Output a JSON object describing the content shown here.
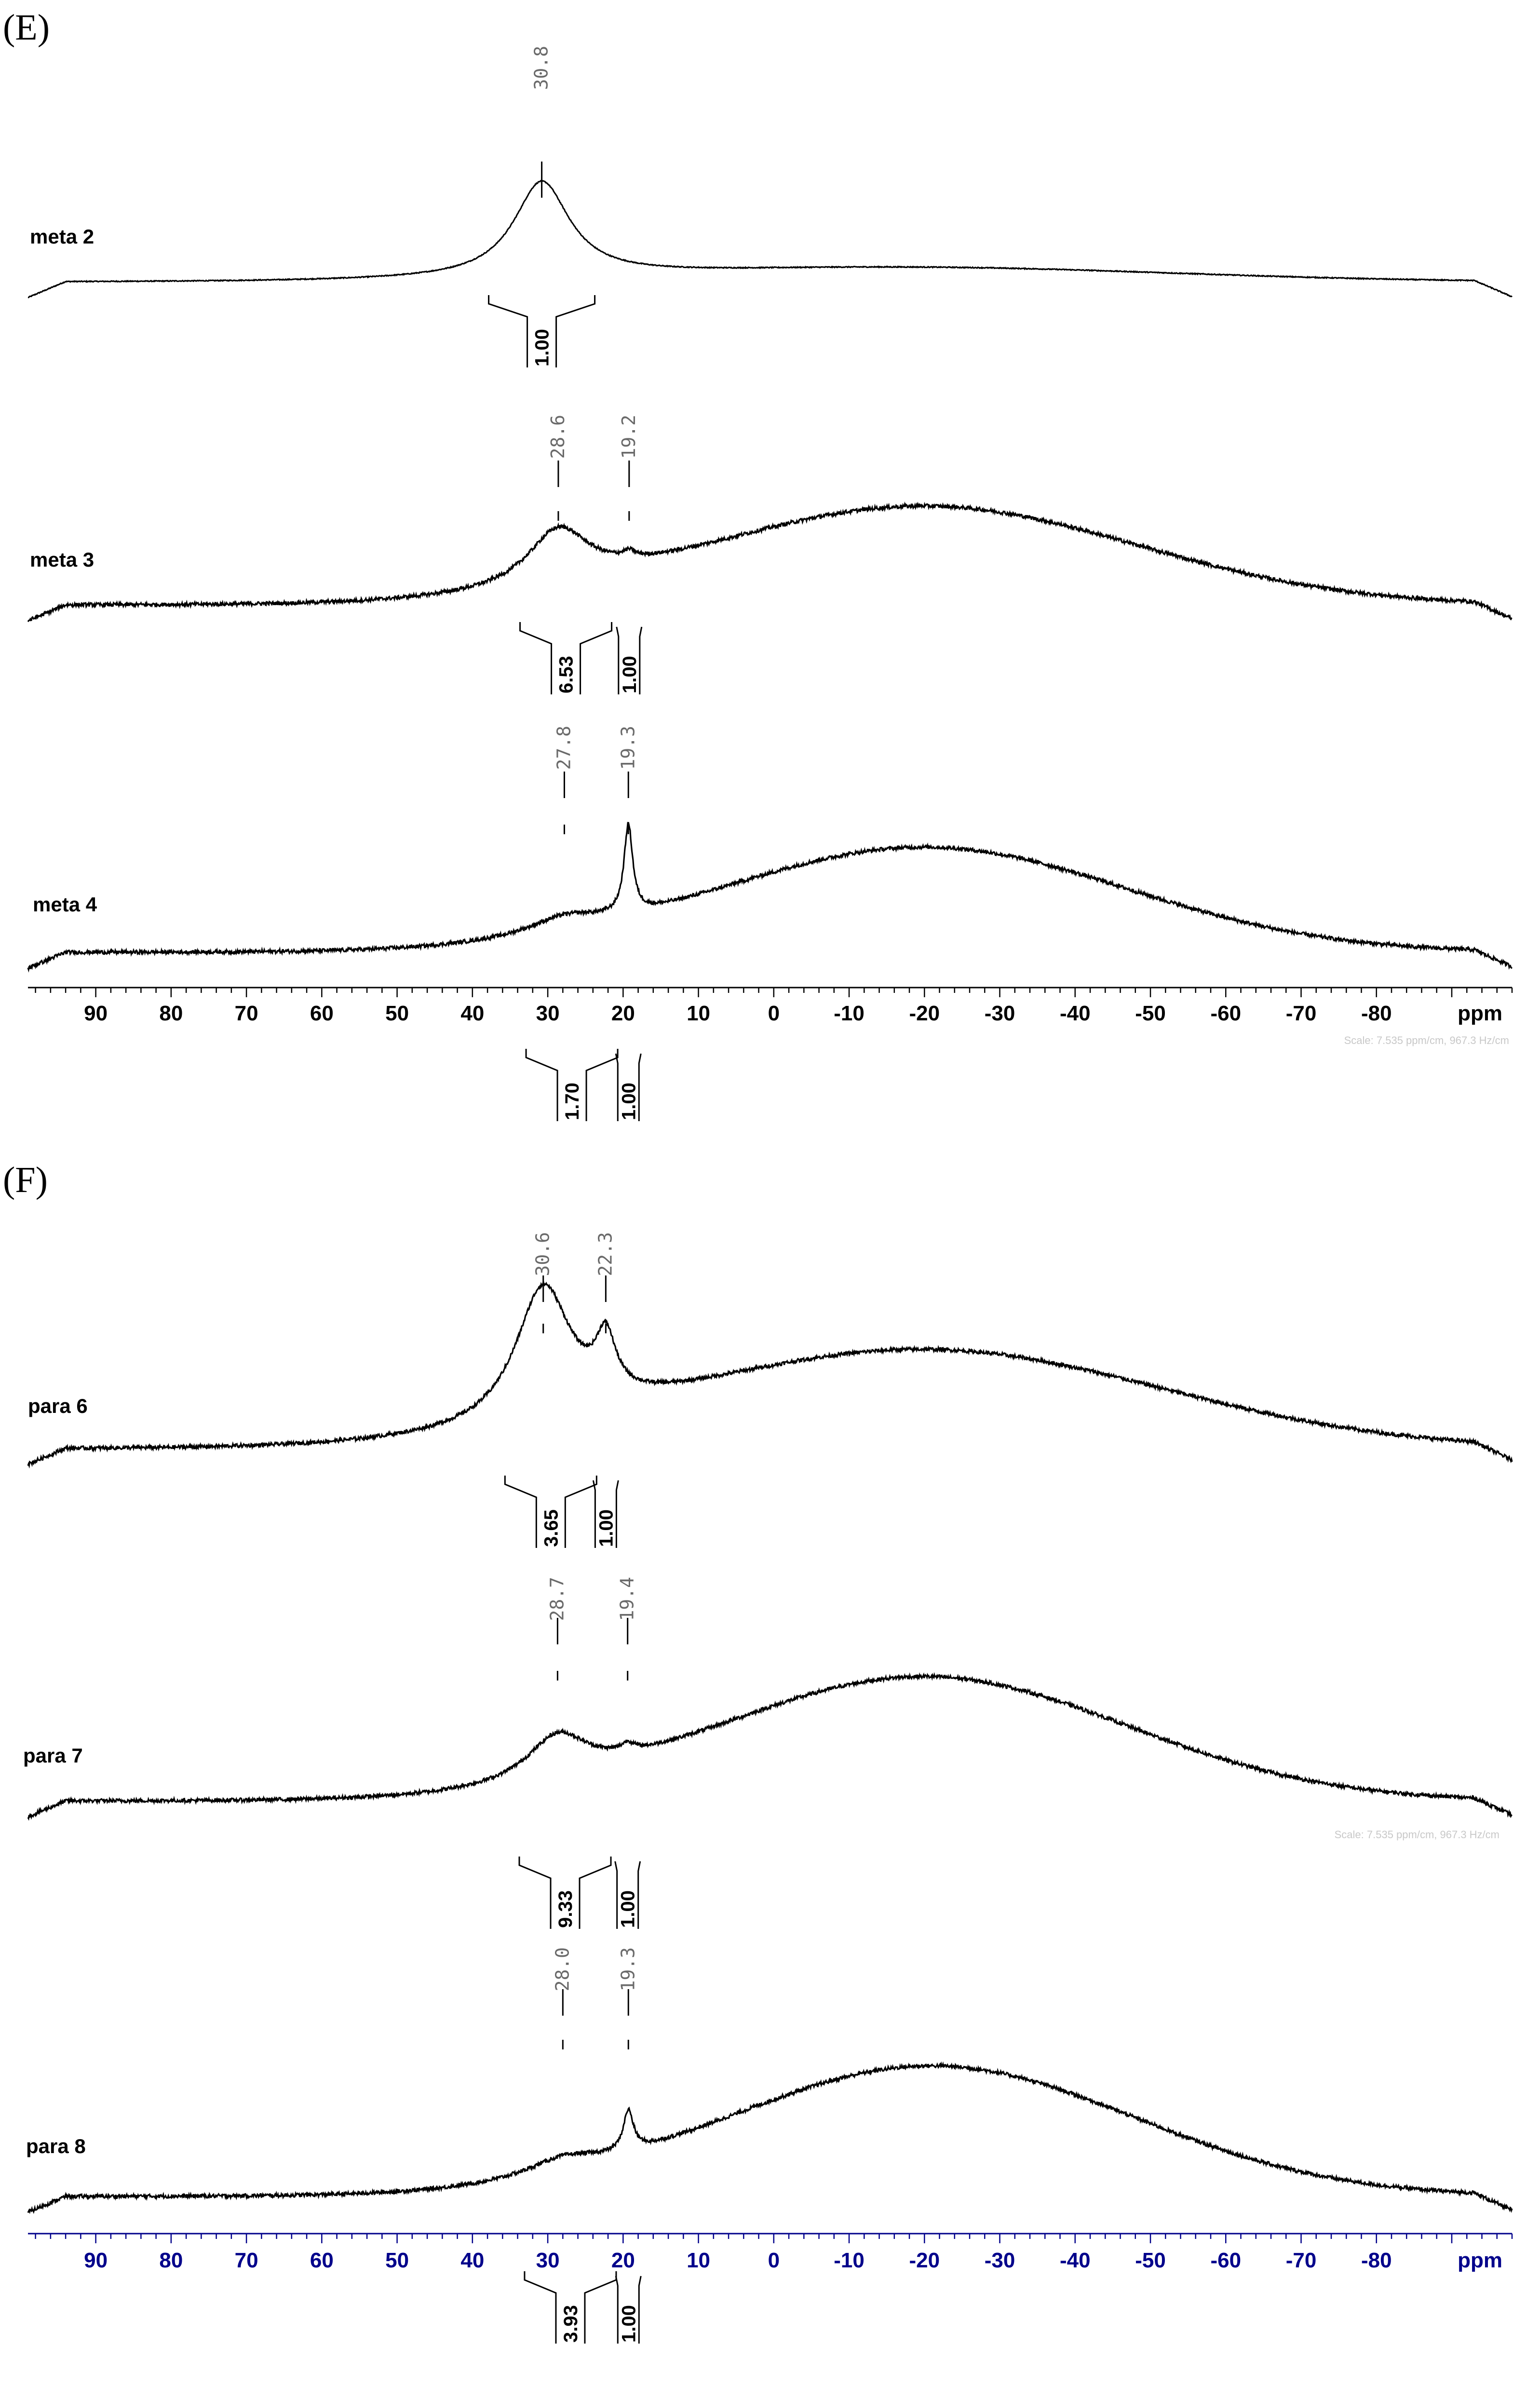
{
  "figure": {
    "panels": [
      {
        "label": "(E)"
      },
      {
        "label": "(F)"
      }
    ],
    "scale_notes": [
      "Scale: 7.535 ppm/cm, 967.3 Hz/cm",
      "Scale: 7.535 ppm/cm, 967.3 Hz/cm"
    ]
  },
  "chart_data": [
    {
      "type": "line",
      "panel": "(E)",
      "xlabel": "ppm",
      "xlim": [
        99,
        -98
      ],
      "x_reversed": true,
      "x_ticks": [
        "90",
        "80",
        "70",
        "60",
        "50",
        "40",
        "30",
        "20",
        "10",
        "0",
        "-10",
        "-20",
        "-30",
        "-40",
        "-50",
        "-60",
        "-70",
        "-80"
      ],
      "axis_color": "#000000",
      "series": [
        {
          "name": "meta 2",
          "peak_labels": [
            "30.8"
          ],
          "integrals": [
            "1.00"
          ],
          "profile": {
            "baseline": 0.0,
            "broad_hump": {
              "center": -18,
              "height": 0.09,
              "width": 50
            },
            "peaks": [
              {
                "ppm": 30.8,
                "height": 0.6,
                "width": 4.5
              }
            ]
          }
        },
        {
          "name": "meta 3",
          "peak_labels": [
            "28.6",
            "19.2"
          ],
          "integrals": [
            "6.53",
            "1.00"
          ],
          "profile": {
            "baseline": 0.0,
            "broad_hump": {
              "center": -20,
              "height": 0.62,
              "width": 40
            },
            "peaks": [
              {
                "ppm": 28.6,
                "height": 0.35,
                "width": 5
              },
              {
                "ppm": 19.2,
                "height": 0.04,
                "width": 1
              }
            ]
          }
        },
        {
          "name": "meta 4",
          "peak_labels": [
            "27.8",
            "19.3"
          ],
          "integrals": [
            "1.70",
            "1.00"
          ],
          "profile": {
            "baseline": 0.0,
            "broad_hump": {
              "center": -20,
              "height": 0.66,
              "width": 38
            },
            "peaks": [
              {
                "ppm": 27.8,
                "height": 0.1,
                "width": 6
              },
              {
                "ppm": 19.3,
                "height": 0.55,
                "width": 0.7
              }
            ]
          }
        }
      ]
    },
    {
      "type": "line",
      "panel": "(F)",
      "xlabel": "ppm",
      "xlim": [
        99,
        -98
      ],
      "x_reversed": true,
      "x_ticks": [
        "90",
        "80",
        "70",
        "60",
        "50",
        "40",
        "30",
        "20",
        "10",
        "0",
        "-10",
        "-20",
        "-30",
        "-40",
        "-50",
        "-60",
        "-70",
        "-80"
      ],
      "axis_color": "#00008b",
      "series": [
        {
          "name": "para 6",
          "peak_labels": [
            "30.6",
            "22.3"
          ],
          "integrals": [
            "3.65",
            "1.00"
          ],
          "profile": {
            "baseline": 0.0,
            "broad_hump": {
              "center": -20,
              "height": 0.62,
              "width": 45
            },
            "peaks": [
              {
                "ppm": 30.6,
                "height": 0.85,
                "width": 4.5
              },
              {
                "ppm": 22.3,
                "height": 0.35,
                "width": 1.6
              }
            ]
          }
        },
        {
          "name": "para 7",
          "peak_labels": [
            "28.7",
            "19.4"
          ],
          "integrals": [
            "9.33",
            "1.00"
          ],
          "profile": {
            "baseline": 0.0,
            "broad_hump": {
              "center": -20,
              "height": 0.78,
              "width": 38
            },
            "peaks": [
              {
                "ppm": 28.7,
                "height": 0.28,
                "width": 5
              },
              {
                "ppm": 19.4,
                "height": 0.05,
                "width": 1
              }
            ]
          }
        },
        {
          "name": "para 8",
          "peak_labels": [
            "28.0",
            "19.3"
          ],
          "integrals": [
            "3.93",
            "1.00"
          ],
          "profile": {
            "baseline": 0.0,
            "broad_hump": {
              "center": -21,
              "height": 0.82,
              "width": 38
            },
            "peaks": [
              {
                "ppm": 28.0,
                "height": 0.1,
                "width": 6
              },
              {
                "ppm": 19.3,
                "height": 0.25,
                "width": 0.8
              }
            ]
          }
        }
      ]
    }
  ]
}
